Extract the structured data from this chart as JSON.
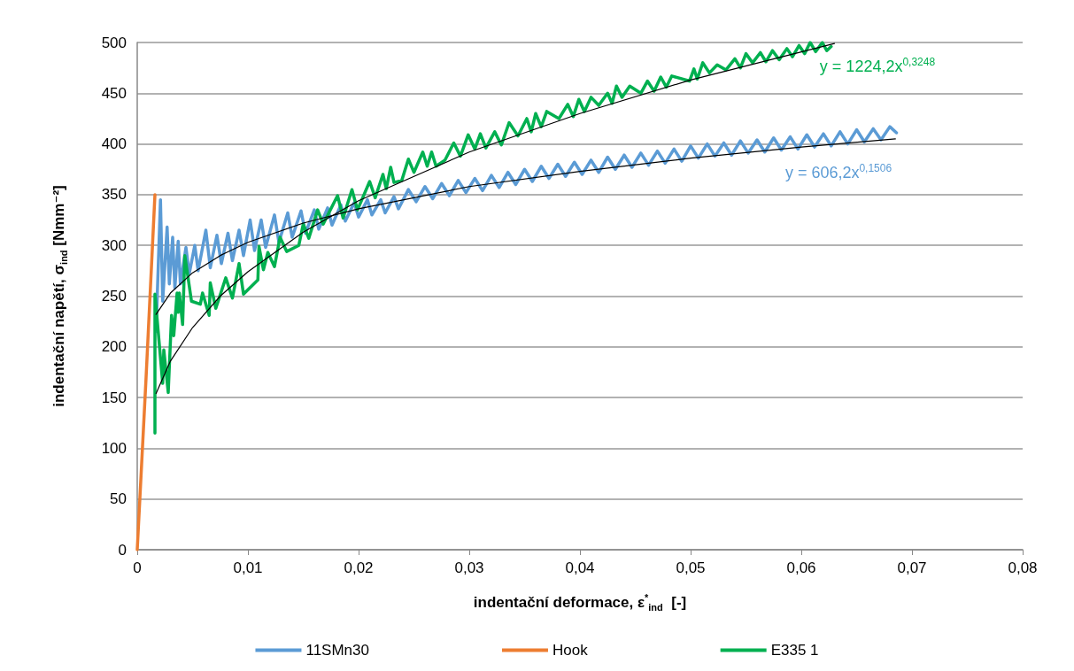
{
  "chart_data": {
    "type": "line",
    "xlabel": "indentační deformace, ε$^{*}$$_{ind}$  [-]",
    "ylabel": "indentační napětí, σ$_{ind}$ [Nmm⁻²]",
    "xlim": [
      0,
      0.08
    ],
    "xticks": [
      0,
      {
        "value": 0.01,
        "label": "0,01"
      },
      {
        "value": 0.02,
        "label": "0,02"
      },
      {
        "value": 0.03,
        "label": "0,03"
      },
      {
        "value": 0.04,
        "label": "0,04"
      },
      {
        "value": 0.05,
        "label": "0,05"
      },
      {
        "value": 0.06,
        "label": "0,06"
      },
      {
        "value": 0.07,
        "label": "0,07"
      },
      {
        "value": 0.08,
        "label": "0,08"
      }
    ],
    "ylim": [
      0,
      500
    ],
    "yticks": [
      0,
      50,
      100,
      150,
      200,
      250,
      300,
      350,
      400,
      450,
      500
    ],
    "grid": "y",
    "legend": "bottom",
    "marker": "none",
    "line_style": "solid",
    "series": [
      {
        "name": "11SMn30",
        "color": "#5b9bd5",
        "x": [
          0.0017,
          0.0021,
          0.0023,
          0.0027,
          0.0029,
          0.0032,
          0.0034,
          0.0037,
          0.0039,
          0.0044,
          0.0047,
          0.0052,
          0.0055,
          0.0062,
          0.0066,
          0.0072,
          0.0076,
          0.0082,
          0.0086,
          0.0092,
          0.0096,
          0.0102,
          0.0106,
          0.0112,
          0.0116,
          0.0124,
          0.0128,
          0.0136,
          0.014,
          0.0148,
          0.0152,
          0.016,
          0.0164,
          0.0172,
          0.0176,
          0.0184,
          0.0188,
          0.0196,
          0.02,
          0.0208,
          0.0212,
          0.022,
          0.0224,
          0.0232,
          0.0236,
          0.0245,
          0.0252,
          0.026,
          0.0267,
          0.0275,
          0.0282,
          0.029,
          0.0297,
          0.0305,
          0.0312,
          0.032,
          0.0327,
          0.0335,
          0.0342,
          0.035,
          0.0357,
          0.0365,
          0.0372,
          0.038,
          0.0387,
          0.0395,
          0.0402,
          0.041,
          0.0417,
          0.0425,
          0.0432,
          0.044,
          0.0447,
          0.0455,
          0.0462,
          0.047,
          0.0477,
          0.0485,
          0.0492,
          0.05,
          0.0507,
          0.0515,
          0.0522,
          0.053,
          0.0537,
          0.0545,
          0.0552,
          0.056,
          0.0567,
          0.0575,
          0.0582,
          0.059,
          0.0597,
          0.0605,
          0.0612,
          0.062,
          0.0627,
          0.0635,
          0.0642,
          0.065,
          0.0657,
          0.0665,
          0.0672,
          0.068,
          0.0686
        ],
        "values": [
          215,
          345,
          245,
          318,
          262,
          308,
          258,
          304,
          262,
          298,
          272,
          300,
          275,
          315,
          278,
          310,
          282,
          312,
          285,
          315,
          290,
          325,
          295,
          325,
          298,
          330,
          303,
          332,
          308,
          334,
          312,
          335,
          316,
          337,
          320,
          340,
          324,
          342,
          328,
          345,
          330,
          345,
          332,
          348,
          336,
          355,
          343,
          358,
          346,
          361,
          349,
          364,
          352,
          366,
          354,
          369,
          357,
          372,
          360,
          375,
          363,
          378,
          366,
          380,
          368,
          382,
          370,
          384,
          372,
          387,
          375,
          389,
          377,
          391,
          379,
          393,
          381,
          395,
          383,
          398,
          386,
          400,
          388,
          401,
          389,
          403,
          391,
          404,
          392,
          406,
          394,
          407,
          395,
          409,
          397,
          410,
          398,
          412,
          400,
          414,
          402,
          415,
          404,
          417,
          411
        ]
      },
      {
        "name": "Hook",
        "color": "#ed7d31",
        "x": [
          0,
          0.0008,
          0.0016
        ],
        "values": [
          0,
          170,
          350
        ]
      },
      {
        "name": "E335 1",
        "color": "#00b050",
        "x": [
          0.0016,
          0.0016,
          0.0023,
          0.0024,
          0.0028,
          0.0031,
          0.0033,
          0.0036,
          0.0037,
          0.0038,
          0.0041,
          0.0043,
          0.0049,
          0.0057,
          0.0059,
          0.0065,
          0.0066,
          0.0071,
          0.008,
          0.0086,
          0.0092,
          0.0096,
          0.0109,
          0.011,
          0.0114,
          0.0118,
          0.0124,
          0.0129,
          0.0135,
          0.0146,
          0.015,
          0.0155,
          0.0163,
          0.0168,
          0.0181,
          0.0186,
          0.0194,
          0.0199,
          0.021,
          0.0215,
          0.0222,
          0.0225,
          0.0229,
          0.0232,
          0.0239,
          0.0245,
          0.025,
          0.0258,
          0.0262,
          0.0266,
          0.027,
          0.0278,
          0.0286,
          0.0292,
          0.0299,
          0.0305,
          0.031,
          0.0315,
          0.0323,
          0.0329,
          0.0336,
          0.0344,
          0.0352,
          0.0356,
          0.036,
          0.0365,
          0.037,
          0.0381,
          0.0389,
          0.0394,
          0.0399,
          0.0404,
          0.041,
          0.0417,
          0.0425,
          0.0429,
          0.0433,
          0.0438,
          0.0445,
          0.0455,
          0.0461,
          0.0467,
          0.0473,
          0.0478,
          0.0483,
          0.0499,
          0.0503,
          0.0506,
          0.0511,
          0.0517,
          0.0524,
          0.0532,
          0.054,
          0.0545,
          0.055,
          0.0556,
          0.0563,
          0.0568,
          0.0574,
          0.058,
          0.0587,
          0.0592,
          0.0598,
          0.0603,
          0.0608,
          0.0613,
          0.0619,
          0.0623,
          0.0627
        ],
        "values": [
          115,
          252,
          164,
          197,
          155,
          231,
          211,
          253,
          234,
          253,
          222,
          290,
          245,
          242,
          253,
          231,
          263,
          238,
          268,
          248,
          282,
          252,
          266,
          299,
          276,
          293,
          279,
          308,
          294,
          300,
          321,
          307,
          335,
          321,
          349,
          327,
          355,
          335,
          363,
          347,
          370,
          356,
          377,
          362,
          364,
          385,
          372,
          392,
          378,
          392,
          378,
          384,
          401,
          388,
          409,
          395,
          410,
          396,
          412,
          399,
          421,
          408,
          425,
          412,
          430,
          417,
          432,
          425,
          439,
          427,
          444,
          432,
          446,
          438,
          450,
          440,
          457,
          446,
          457,
          450,
          462,
          452,
          466,
          456,
          467,
          462,
          474,
          464,
          480,
          470,
          478,
          473,
          484,
          475,
          489,
          480,
          490,
          481,
          492,
          483,
          494,
          486,
          497,
          489,
          500,
          491,
          500,
          492,
          496
        ]
      },
      {
        "type": "line",
        "color": "#000000",
        "x": [
          0.0017,
          0.003,
          0.005,
          0.0075,
          0.01,
          0.015,
          0.02,
          0.03,
          0.04,
          0.05,
          0.06,
          0.0685
        ],
        "values": [
          232,
          253,
          273,
          290,
          303,
          322,
          336,
          358,
          373,
          386,
          397,
          405
        ]
      },
      {
        "type": "line",
        "color": "#000000",
        "x": [
          0.0017,
          0.003,
          0.005,
          0.0075,
          0.01,
          0.015,
          0.02,
          0.03,
          0.04,
          0.05,
          0.063
        ],
        "values": [
          154,
          186,
          219,
          250,
          274,
          313,
          344,
          392,
          430,
          463,
          499
        ]
      }
    ],
    "annotations": [
      "y = 606,2x$^{0,1506}$",
      "y = 1224,2x$^{0,3248}$"
    ]
  }
}
